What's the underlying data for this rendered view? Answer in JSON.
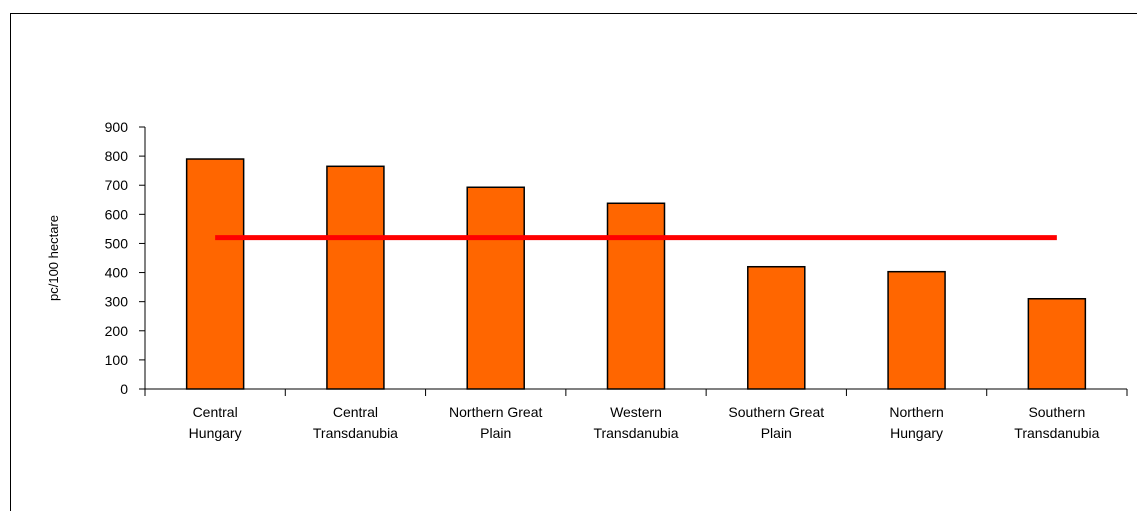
{
  "chart_data": {
    "type": "bar",
    "title": "",
    "xlabel": "",
    "ylabel": "pc/100 hectare",
    "ylim": [
      0,
      900
    ],
    "yticks": [
      0,
      100,
      200,
      300,
      400,
      500,
      600,
      700,
      800,
      900
    ],
    "categories": [
      [
        "Central",
        "Hungary"
      ],
      [
        "Central",
        "Transdanubia"
      ],
      [
        "Northern Great",
        "Plain"
      ],
      [
        "Western",
        "Transdanubia"
      ],
      [
        "Southern Great",
        "Plain"
      ],
      [
        "Northern",
        "Hungary"
      ],
      [
        "Southern",
        "Transdanubia"
      ]
    ],
    "values": [
      790,
      765,
      693,
      638,
      420,
      403,
      310
    ],
    "reference_line": {
      "value": 520,
      "color": "#ff0000"
    },
    "grid": false,
    "legend": "none",
    "bar_color": "#ff6600",
    "bar_edge_color": "#000000"
  }
}
